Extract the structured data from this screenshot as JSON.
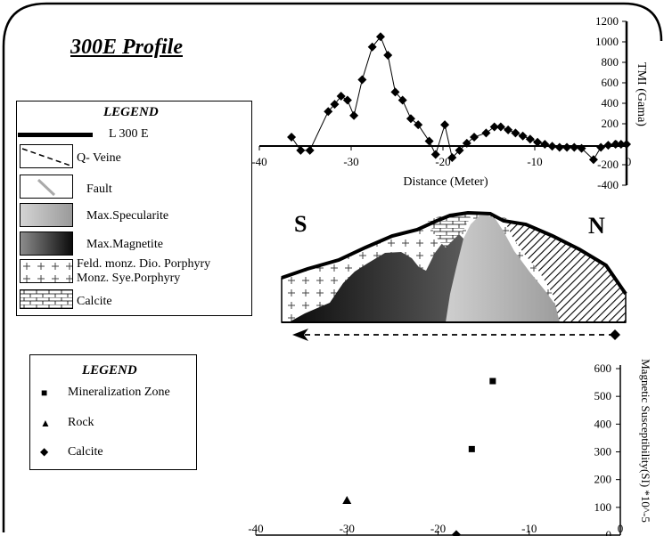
{
  "title": "300E Profile",
  "legend1": {
    "heading": "LEGEND",
    "items": [
      {
        "label": "L 300 E",
        "symbol": "thick-line"
      },
      {
        "label": "Q- Veine",
        "symbol": "dashed-line"
      },
      {
        "label": "Fault",
        "symbol": "gray-line"
      },
      {
        "label": "Max.Specularite",
        "symbol": "light-gray-gradient"
      },
      {
        "label": "Max.Magnetite",
        "symbol": "dark-gray-gradient"
      },
      {
        "label": "Feld. monz. Dio. Porphyry",
        "symbol": "plus-pattern"
      },
      {
        "label": "Monz. Sye.Porphyry",
        "symbol": "none"
      },
      {
        "label": "Calcite",
        "symbol": "brick-pattern"
      }
    ]
  },
  "legend2": {
    "heading": "LEGEND",
    "items": [
      {
        "label": "Mineralization Zone",
        "symbol": "square-icon"
      },
      {
        "label": "Rock",
        "symbol": "triangle-icon"
      },
      {
        "label": "Calcite",
        "symbol": "diamond-icon"
      }
    ]
  },
  "section": {
    "left_label": "S",
    "right_label": "N"
  },
  "chart_data": [
    {
      "type": "line",
      "xlabel": "Distance (Meter)",
      "ylabel": "TMI (Gama)",
      "xlim": [
        -40,
        0
      ],
      "ylim": [
        -400,
        1200
      ],
      "xticks": [
        -40,
        -30,
        -20,
        -10,
        0
      ],
      "yticks": [
        1200,
        1000,
        800,
        600,
        400,
        200,
        0,
        -200,
        -400
      ],
      "marker": "diamond",
      "points": [
        [
          -36.5,
          70
        ],
        [
          -35.5,
          -60
        ],
        [
          -34.5,
          -60
        ],
        [
          -32.5,
          320
        ],
        [
          -31.8,
          390
        ],
        [
          -31.1,
          470
        ],
        [
          -30.4,
          430
        ],
        [
          -29.7,
          280
        ],
        [
          -28.8,
          630
        ],
        [
          -27.7,
          950
        ],
        [
          -26.8,
          1050
        ],
        [
          -26.0,
          870
        ],
        [
          -25.2,
          510
        ],
        [
          -24.4,
          430
        ],
        [
          -23.5,
          250
        ],
        [
          -22.7,
          190
        ],
        [
          -21.5,
          30
        ],
        [
          -20.8,
          -100
        ],
        [
          -19.8,
          190
        ],
        [
          -19.0,
          -130
        ],
        [
          -18.2,
          -60
        ],
        [
          -17.4,
          10
        ],
        [
          -16.6,
          70
        ],
        [
          -15.3,
          110
        ],
        [
          -14.4,
          170
        ],
        [
          -13.7,
          170
        ],
        [
          -12.9,
          140
        ],
        [
          -12.1,
          110
        ],
        [
          -11.3,
          80
        ],
        [
          -10.5,
          50
        ],
        [
          -9.7,
          20
        ],
        [
          -8.9,
          0
        ],
        [
          -8.1,
          -20
        ],
        [
          -7.3,
          -30
        ],
        [
          -6.5,
          -30
        ],
        [
          -5.7,
          -30
        ],
        [
          -4.9,
          -40
        ],
        [
          -3.6,
          -150
        ],
        [
          -2.8,
          -30
        ],
        [
          -2.0,
          -10
        ],
        [
          -1.2,
          0
        ],
        [
          -0.6,
          0
        ],
        [
          0.0,
          0
        ]
      ]
    },
    {
      "type": "scatter",
      "xlabel": "",
      "ylabel": "Magnetic Susceptibility(SI) *10^-5",
      "xlim": [
        -40,
        0
      ],
      "ylim": [
        0,
        600
      ],
      "xticks": [
        -40,
        -30,
        -20,
        -10,
        0
      ],
      "yticks": [
        600,
        500,
        400,
        300,
        200,
        100,
        0
      ],
      "series": [
        {
          "name": "Mineralization Zone",
          "marker": "square",
          "points": [
            [
              -14,
              555
            ],
            [
              -16.3,
              310
            ]
          ]
        },
        {
          "name": "Rock",
          "marker": "triangle",
          "points": [
            [
              -30,
              125
            ]
          ]
        },
        {
          "name": "Calcite",
          "marker": "diamond",
          "points": [
            [
              -18,
              2
            ]
          ]
        }
      ]
    }
  ]
}
